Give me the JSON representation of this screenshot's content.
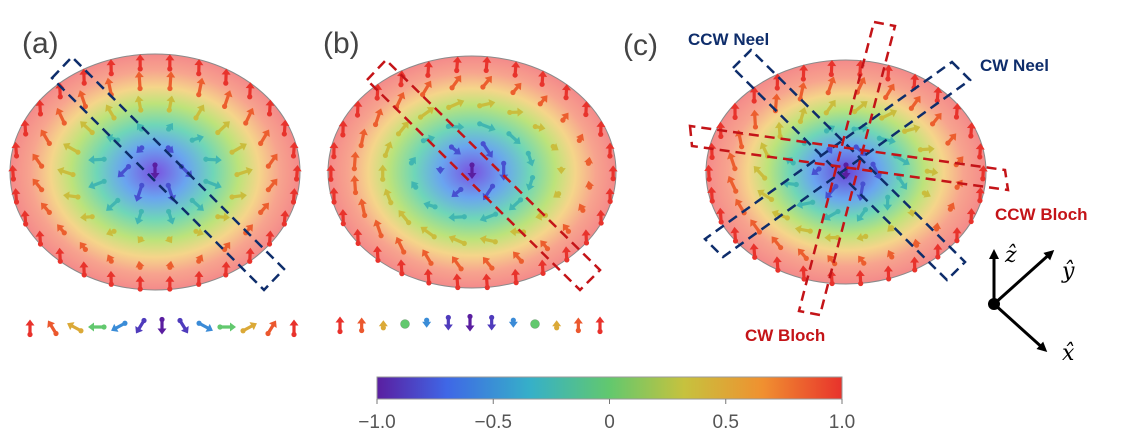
{
  "panels": [
    {
      "label": "(a)",
      "kind": "neel"
    },
    {
      "label": "(b)",
      "kind": "bloch"
    },
    {
      "label": "(c)",
      "kind": "both"
    }
  ],
  "annotations": {
    "ccw_neel": "CCW Neel",
    "cw_neel": "CW Neel",
    "ccw_bloch": "CCW Bloch",
    "cw_bloch": "CW Bloch"
  },
  "axes": {
    "x": "x̂",
    "y": "ŷ",
    "z": "ẑ"
  },
  "colorbar": {
    "colormap": [
      "#5a1ea0",
      "#3f67e6",
      "#36b0c8",
      "#62c86e",
      "#c6c23e",
      "#f09030",
      "#e8322c"
    ],
    "ticks": [
      "−1.0",
      "−0.5",
      "0",
      "0.5",
      "1.0"
    ],
    "range": [
      -1.0,
      1.0
    ]
  },
  "colors": {
    "neel_box": "#0e2d6b",
    "bloch_box": "#c41418",
    "panel_label": "#444444"
  }
}
